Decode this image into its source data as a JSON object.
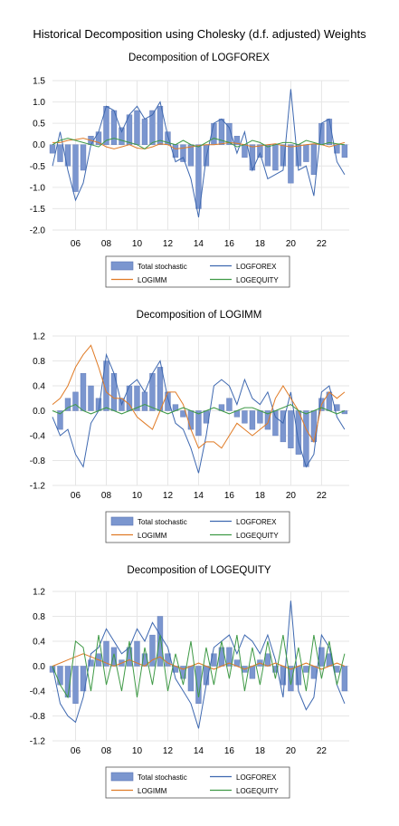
{
  "figure_title": "Historical Decomposition using Cholesky (d.f. adjusted) Weights",
  "colors": {
    "total_stochastic": "#7b96cf",
    "total_stochastic_edge": "#5a74b4",
    "logforex": "#3e68b0",
    "logimm": "#e07b26",
    "logequity": "#3f9a46",
    "grid": "#e6e6e6"
  },
  "legend": {
    "total_stochastic": "Total stochastic",
    "logforex": "LOGFOREX",
    "logimm": "LOGIMM",
    "logequity": "LOGEQUITY"
  },
  "chart_data": [
    {
      "type": "line",
      "title": "Decomposition of LOGFOREX",
      "xlabel": "",
      "ylabel": "",
      "xlim": [
        2004.5,
        2023.8
      ],
      "ylim": [
        -2.0,
        1.5
      ],
      "yticks": [
        1.5,
        1.0,
        0.5,
        0.0,
        -0.5,
        -1.0,
        -1.5,
        -2.0
      ],
      "ytick_labels": [
        "1.5",
        "1.0",
        "0.5",
        "0.0",
        "-0.5",
        "-1.0",
        "-1.5",
        "-2.0"
      ],
      "xticks": [
        2006,
        2008,
        2010,
        2012,
        2014,
        2016,
        2018,
        2020,
        2022
      ],
      "xtick_labels": [
        "06",
        "08",
        "10",
        "12",
        "14",
        "16",
        "18",
        "20",
        "22"
      ],
      "grid": true,
      "legend_position": "bottom",
      "x": [
        2004.5,
        2005.0,
        2005.5,
        2006.0,
        2006.5,
        2007.0,
        2007.5,
        2008.0,
        2008.5,
        2009.0,
        2009.5,
        2010.0,
        2010.5,
        2011.0,
        2011.5,
        2012.0,
        2012.5,
        2013.0,
        2013.5,
        2014.0,
        2014.5,
        2015.0,
        2015.5,
        2016.0,
        2016.5,
        2017.0,
        2017.5,
        2018.0,
        2018.5,
        2019.0,
        2019.5,
        2020.0,
        2020.5,
        2021.0,
        2021.5,
        2022.0,
        2022.5,
        2023.0,
        2023.5
      ],
      "series": [
        {
          "name": "Total stochastic",
          "values": [
            -0.2,
            -0.4,
            -0.5,
            -1.1,
            -0.6,
            0.2,
            0.3,
            0.9,
            0.8,
            0.4,
            0.7,
            0.8,
            0.6,
            0.8,
            0.9,
            0.3,
            -0.3,
            -0.4,
            -0.5,
            -1.5,
            -0.5,
            0.5,
            0.6,
            0.5,
            0.2,
            -0.3,
            -0.6,
            -0.3,
            -0.5,
            -0.6,
            -0.5,
            -0.9,
            -0.5,
            -0.4,
            -0.7,
            0.5,
            0.6,
            -0.2,
            -0.3
          ]
        },
        {
          "name": "LOGFOREX",
          "values": [
            -0.5,
            0.3,
            -0.6,
            -1.3,
            -0.9,
            0.0,
            0.3,
            0.9,
            0.8,
            0.3,
            0.7,
            0.9,
            0.6,
            0.7,
            1.0,
            0.2,
            -0.4,
            -0.3,
            -0.8,
            -1.7,
            -0.3,
            0.5,
            0.6,
            0.4,
            -0.2,
            0.3,
            -0.6,
            -0.2,
            -0.8,
            -0.7,
            -0.6,
            1.3,
            -0.6,
            -0.5,
            -1.2,
            0.5,
            0.6,
            -0.4,
            -0.7
          ]
        },
        {
          "name": "LOGIMM",
          "values": [
            0.05,
            0.05,
            0.1,
            0.12,
            0.15,
            0.1,
            0.05,
            -0.05,
            -0.1,
            -0.05,
            0.0,
            -0.08,
            -0.1,
            -0.05,
            0.02,
            0.0,
            -0.1,
            -0.08,
            -0.05,
            -0.02,
            0.0,
            0.0,
            0.02,
            0.05,
            0.03,
            0.0,
            -0.05,
            -0.03,
            0.0,
            0.02,
            -0.02,
            -0.05,
            -0.03,
            0.0,
            0.02,
            0.0,
            -0.05,
            0.0,
            0.05
          ]
        },
        {
          "name": "LOGEQUITY",
          "values": [
            0.0,
            0.1,
            0.15,
            0.1,
            0.05,
            0.0,
            -0.05,
            0.1,
            0.15,
            0.1,
            0.05,
            0.0,
            -0.1,
            0.05,
            0.1,
            0.05,
            0.0,
            0.1,
            0.0,
            -0.05,
            0.05,
            0.15,
            0.1,
            0.05,
            -0.05,
            0.0,
            0.1,
            0.05,
            -0.05,
            0.0,
            0.05,
            0.05,
            0.0,
            0.1,
            0.05,
            0.0,
            0.05,
            0.02,
            0.0
          ]
        }
      ]
    },
    {
      "type": "line",
      "title": "Decomposition of LOGIMM",
      "xlabel": "",
      "ylabel": "",
      "xlim": [
        2004.5,
        2023.8
      ],
      "ylim": [
        -1.2,
        1.2
      ],
      "yticks": [
        1.2,
        0.8,
        0.4,
        0.0,
        -0.4,
        -0.8,
        -1.2
      ],
      "ytick_labels": [
        "1.2",
        "0.8",
        "0.4",
        "0.0",
        "-0.4",
        "-0.8",
        "-1.2"
      ],
      "xticks": [
        2006,
        2008,
        2010,
        2012,
        2014,
        2016,
        2018,
        2020,
        2022
      ],
      "xtick_labels": [
        "06",
        "08",
        "10",
        "12",
        "14",
        "16",
        "18",
        "20",
        "22"
      ],
      "grid": true,
      "legend_position": "bottom",
      "x": [
        2004.5,
        2005.0,
        2005.5,
        2006.0,
        2006.5,
        2007.0,
        2007.5,
        2008.0,
        2008.5,
        2009.0,
        2009.5,
        2010.0,
        2010.5,
        2011.0,
        2011.5,
        2012.0,
        2012.5,
        2013.0,
        2013.5,
        2014.0,
        2014.5,
        2015.0,
        2015.5,
        2016.0,
        2016.5,
        2017.0,
        2017.5,
        2018.0,
        2018.5,
        2019.0,
        2019.5,
        2020.0,
        2020.5,
        2021.0,
        2021.5,
        2022.0,
        2022.5,
        2023.0,
        2023.5
      ],
      "series": [
        {
          "name": "Total stochastic",
          "values": [
            0.0,
            -0.3,
            0.2,
            0.3,
            0.6,
            0.4,
            0.2,
            0.8,
            0.6,
            0.2,
            0.4,
            0.4,
            0.3,
            0.6,
            0.7,
            0.3,
            0.1,
            -0.1,
            -0.3,
            -0.4,
            -0.2,
            0.0,
            0.1,
            0.2,
            -0.1,
            -0.2,
            -0.3,
            -0.2,
            -0.3,
            -0.4,
            -0.5,
            -0.6,
            -0.7,
            -0.9,
            -0.5,
            0.2,
            0.3,
            0.1,
            -0.05
          ]
        },
        {
          "name": "LOGFOREX",
          "values": [
            -0.1,
            -0.4,
            -0.3,
            -0.7,
            -0.9,
            -0.2,
            0.0,
            0.9,
            0.6,
            0.1,
            0.4,
            0.5,
            0.3,
            0.6,
            0.8,
            0.2,
            -0.2,
            -0.3,
            -0.6,
            -1.0,
            -0.4,
            0.4,
            0.5,
            0.4,
            0.1,
            0.5,
            0.2,
            0.1,
            0.3,
            -0.1,
            -0.2,
            0.3,
            -0.5,
            -0.9,
            -0.7,
            0.3,
            0.4,
            -0.1,
            -0.3
          ]
        },
        {
          "name": "LOGIMM",
          "values": [
            0.1,
            0.2,
            0.4,
            0.7,
            0.9,
            1.05,
            0.7,
            0.3,
            0.2,
            0.2,
            0.1,
            -0.1,
            -0.2,
            -0.3,
            0.0,
            0.3,
            0.3,
            0.1,
            -0.3,
            -0.6,
            -0.5,
            -0.5,
            -0.6,
            -0.4,
            -0.2,
            -0.3,
            -0.4,
            -0.3,
            -0.2,
            0.2,
            0.4,
            0.2,
            0.0,
            -0.3,
            -0.5,
            0.1,
            0.3,
            0.2,
            0.3
          ]
        },
        {
          "name": "LOGEQUITY",
          "values": [
            0.0,
            -0.05,
            0.05,
            0.1,
            0.0,
            -0.05,
            0.0,
            0.05,
            0.0,
            -0.05,
            0.0,
            0.05,
            0.1,
            0.05,
            0.0,
            -0.05,
            0.0,
            0.05,
            0.0,
            -0.05,
            0.0,
            0.05,
            0.0,
            -0.05,
            0.0,
            0.05,
            0.05,
            0.0,
            -0.05,
            0.0,
            0.05,
            0.1,
            0.0,
            -0.05,
            0.0,
            0.05,
            0.0,
            -0.05,
            0.0
          ]
        }
      ]
    },
    {
      "type": "line",
      "title": "Decomposition of LOGEQUITY",
      "xlabel": "",
      "ylabel": "",
      "xlim": [
        2004.5,
        2023.8
      ],
      "ylim": [
        -1.2,
        1.2
      ],
      "yticks": [
        1.2,
        0.8,
        0.4,
        0.0,
        -0.4,
        -0.8,
        -1.2
      ],
      "ytick_labels": [
        "1.2",
        "0.8",
        "0.4",
        "0.0",
        "-0.4",
        "-0.8",
        "-1.2"
      ],
      "xticks": [
        2006,
        2008,
        2010,
        2012,
        2014,
        2016,
        2018,
        2020,
        2022
      ],
      "xtick_labels": [
        "06",
        "08",
        "10",
        "12",
        "14",
        "16",
        "18",
        "20",
        "22"
      ],
      "grid": true,
      "legend_position": "bottom",
      "x": [
        2004.5,
        2005.0,
        2005.5,
        2006.0,
        2006.5,
        2007.0,
        2007.5,
        2008.0,
        2008.5,
        2009.0,
        2009.5,
        2010.0,
        2010.5,
        2011.0,
        2011.5,
        2012.0,
        2012.5,
        2013.0,
        2013.5,
        2014.0,
        2014.5,
        2015.0,
        2015.5,
        2016.0,
        2016.5,
        2017.0,
        2017.5,
        2018.0,
        2018.5,
        2019.0,
        2019.5,
        2020.0,
        2020.5,
        2021.0,
        2021.5,
        2022.0,
        2022.5,
        2023.0,
        2023.5
      ],
      "series": [
        {
          "name": "Total stochastic",
          "values": [
            -0.1,
            -0.3,
            -0.5,
            -0.6,
            -0.4,
            0.1,
            0.2,
            0.4,
            0.3,
            0.1,
            0.3,
            0.4,
            0.2,
            0.5,
            0.8,
            0.2,
            -0.1,
            -0.2,
            -0.4,
            -0.6,
            -0.3,
            0.2,
            0.3,
            0.3,
            0.1,
            -0.1,
            -0.2,
            0.1,
            0.2,
            -0.1,
            -0.3,
            -0.4,
            -0.3,
            -0.1,
            -0.2,
            0.3,
            0.2,
            -0.1,
            -0.4
          ]
        },
        {
          "name": "LOGFOREX",
          "values": [
            0.0,
            -0.6,
            -0.8,
            -0.9,
            -0.5,
            0.2,
            0.3,
            0.6,
            0.4,
            0.2,
            0.3,
            0.6,
            0.4,
            0.7,
            0.5,
            0.3,
            -0.2,
            -0.4,
            -0.6,
            -1.0,
            -0.3,
            0.3,
            0.4,
            0.5,
            0.2,
            0.5,
            0.4,
            0.2,
            0.5,
            0.1,
            -0.5,
            1.05,
            -0.4,
            -0.7,
            -0.5,
            0.5,
            0.3,
            -0.3,
            -0.6
          ]
        },
        {
          "name": "LOGIMM",
          "values": [
            0.0,
            0.05,
            0.1,
            0.15,
            0.2,
            0.15,
            0.1,
            0.05,
            0.0,
            0.05,
            0.1,
            0.05,
            0.0,
            0.1,
            0.15,
            0.05,
            0.0,
            -0.05,
            0.0,
            0.05,
            0.0,
            -0.05,
            0.0,
            0.05,
            0.0,
            -0.05,
            0.0,
            0.05,
            0.0,
            0.05,
            0.0,
            -0.05,
            0.0,
            0.05,
            0.0,
            -0.05,
            0.0,
            0.05,
            0.0
          ]
        },
        {
          "name": "LOGEQUITY",
          "values": [
            0.0,
            -0.3,
            -0.5,
            0.4,
            0.3,
            -0.4,
            0.5,
            -0.3,
            0.2,
            -0.4,
            0.4,
            -0.5,
            0.3,
            -0.3,
            0.5,
            -0.4,
            0.2,
            -0.3,
            0.4,
            -0.5,
            0.3,
            -0.3,
            0.4,
            -0.2,
            0.5,
            -0.4,
            0.3,
            -0.3,
            0.4,
            -0.2,
            0.5,
            -0.3,
            0.3,
            -0.4,
            0.5,
            -0.2,
            0.4,
            -0.3,
            0.2
          ]
        }
      ]
    }
  ]
}
